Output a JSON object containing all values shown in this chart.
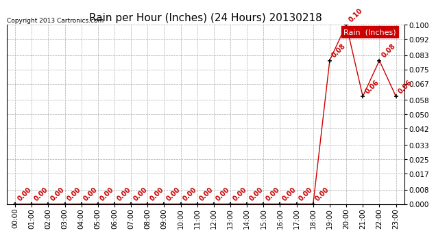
{
  "title": "Rain per Hour (Inches) (24 Hours) 20130218",
  "copyright": "Copyright 2013 Cartronics.com",
  "legend_label": "Rain  (Inches)",
  "ylim": [
    0.0,
    0.1
  ],
  "yticks": [
    0.0,
    0.008,
    0.017,
    0.025,
    0.033,
    0.042,
    0.05,
    0.058,
    0.067,
    0.075,
    0.083,
    0.092,
    0.1
  ],
  "hours": [
    "00:00",
    "01:00",
    "02:00",
    "03:00",
    "04:00",
    "05:00",
    "06:00",
    "07:00",
    "08:00",
    "09:00",
    "10:00",
    "11:00",
    "12:00",
    "13:00",
    "14:00",
    "15:00",
    "16:00",
    "17:00",
    "18:00",
    "19:00",
    "20:00",
    "21:00",
    "22:00",
    "23:00"
  ],
  "values": [
    0.0,
    0.0,
    0.0,
    0.0,
    0.0,
    0.0,
    0.0,
    0.0,
    0.0,
    0.0,
    0.0,
    0.0,
    0.0,
    0.0,
    0.0,
    0.0,
    0.0,
    0.0,
    0.0,
    0.08,
    0.1,
    0.06,
    0.08,
    0.06
  ],
  "line_color": "#cc0000",
  "marker": "+",
  "marker_color": "#000000",
  "bg_color": "#ffffff",
  "grid_color": "#aaaaaa",
  "title_fontsize": 11,
  "label_fontsize": 7.5,
  "annotation_fontsize": 7,
  "legend_bg_color": "#cc0000",
  "legend_text_color": "#ffffff"
}
